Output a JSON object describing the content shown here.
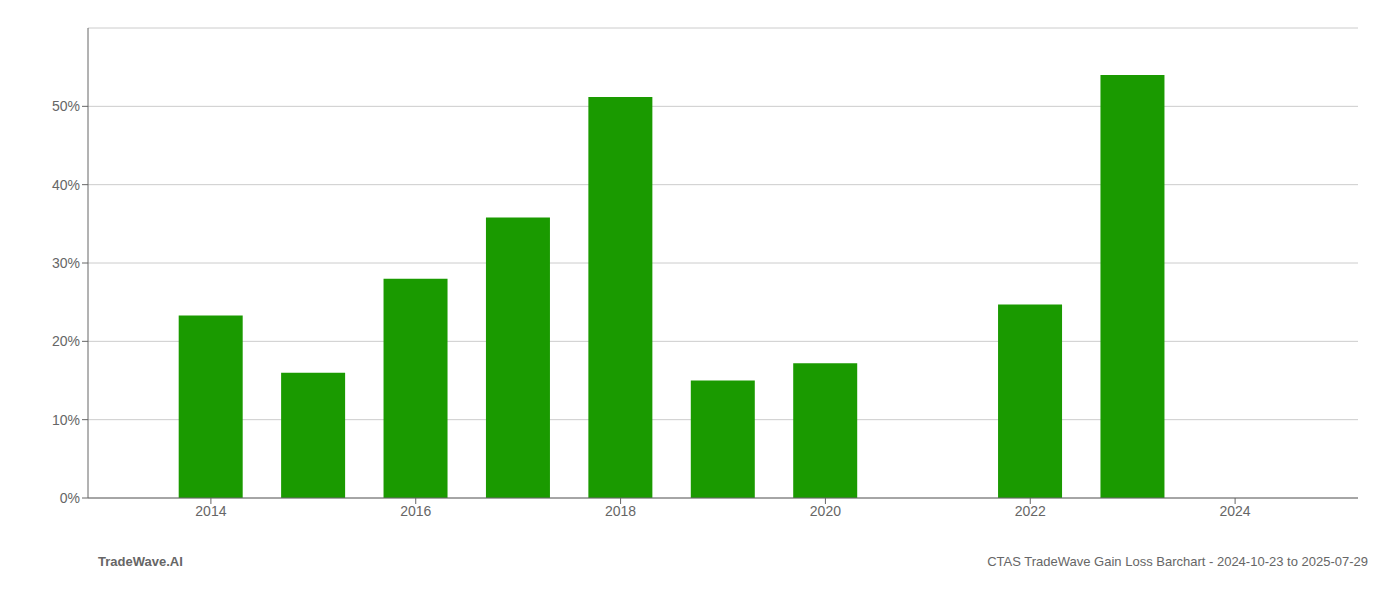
{
  "chart_data": {
    "type": "bar",
    "x": [
      2014,
      2015,
      2016,
      2017,
      2018,
      2019,
      2020,
      2021,
      2022,
      2023
    ],
    "values": [
      0.233,
      0.16,
      0.28,
      0.358,
      0.512,
      0.15,
      0.172,
      null,
      0.247,
      0.54
    ],
    "color": "#1a9a00",
    "xlim": [
      2012.8,
      2025.2
    ],
    "xticks": [
      2014,
      2016,
      2018,
      2020,
      2022,
      2024
    ],
    "ylim": [
      0,
      0.6
    ],
    "yticks": [
      {
        "value": 0.0,
        "label": "0%"
      },
      {
        "value": 0.1,
        "label": "10%"
      },
      {
        "value": 0.2,
        "label": "20%"
      },
      {
        "value": 0.3,
        "label": "30%"
      },
      {
        "value": 0.4,
        "label": "40%"
      },
      {
        "value": 0.5,
        "label": "50%"
      }
    ],
    "grid": true,
    "annotations": [
      "TradeWave.AI",
      "CTAS TradeWave Gain Loss Barchart - 2024-10-23 to 2025-07-29"
    ]
  }
}
